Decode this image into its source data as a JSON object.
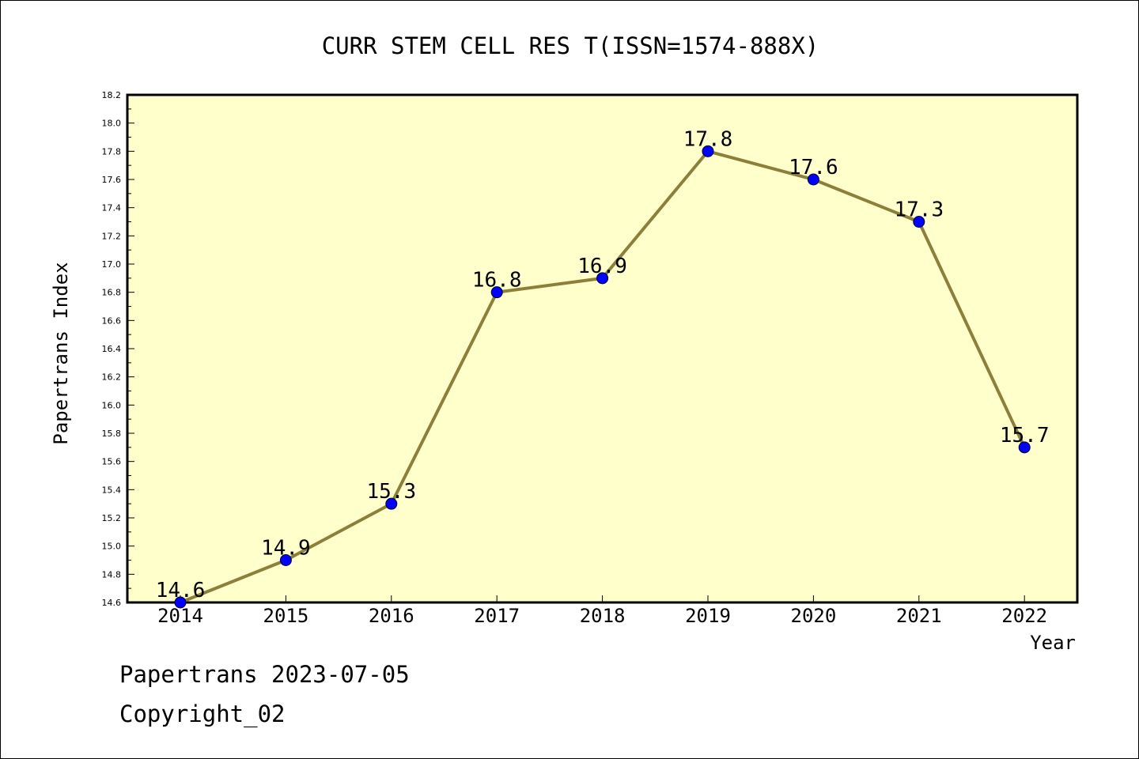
{
  "chart_data": {
    "type": "line",
    "title": "CURR STEM CELL RES T(ISSN=1574-888X)",
    "xlabel": "Year",
    "ylabel": "Papertrans Index",
    "categories": [
      "2014",
      "2015",
      "2016",
      "2017",
      "2018",
      "2019",
      "2020",
      "2021",
      "2022"
    ],
    "series": [
      {
        "values": [
          14.6,
          14.9,
          15.3,
          16.8,
          16.9,
          17.8,
          17.6,
          17.3,
          15.7
        ],
        "labels": [
          "14.6",
          "14.9",
          "15.3",
          "16.8",
          "16.9",
          "17.8",
          "17.6",
          "17.3",
          "15.7"
        ]
      }
    ],
    "ylim": [
      14.6,
      18.2
    ],
    "yticks": [
      "14.6",
      "14.8",
      "15.0",
      "15.2",
      "15.4",
      "15.6",
      "15.8",
      "16.0",
      "16.2",
      "16.4",
      "16.6",
      "16.8",
      "17.0",
      "17.2",
      "17.4",
      "17.6",
      "17.8",
      "18.0",
      "18.2"
    ],
    "grid": false,
    "legend": "none",
    "colors": {
      "plot_background": "#ffffcc",
      "line": "#8b7f3a",
      "marker": "#0000ff",
      "axis": "#000000"
    }
  },
  "footer": {
    "line1": "Papertrans 2023-07-05",
    "line2": "Copyright_02"
  }
}
